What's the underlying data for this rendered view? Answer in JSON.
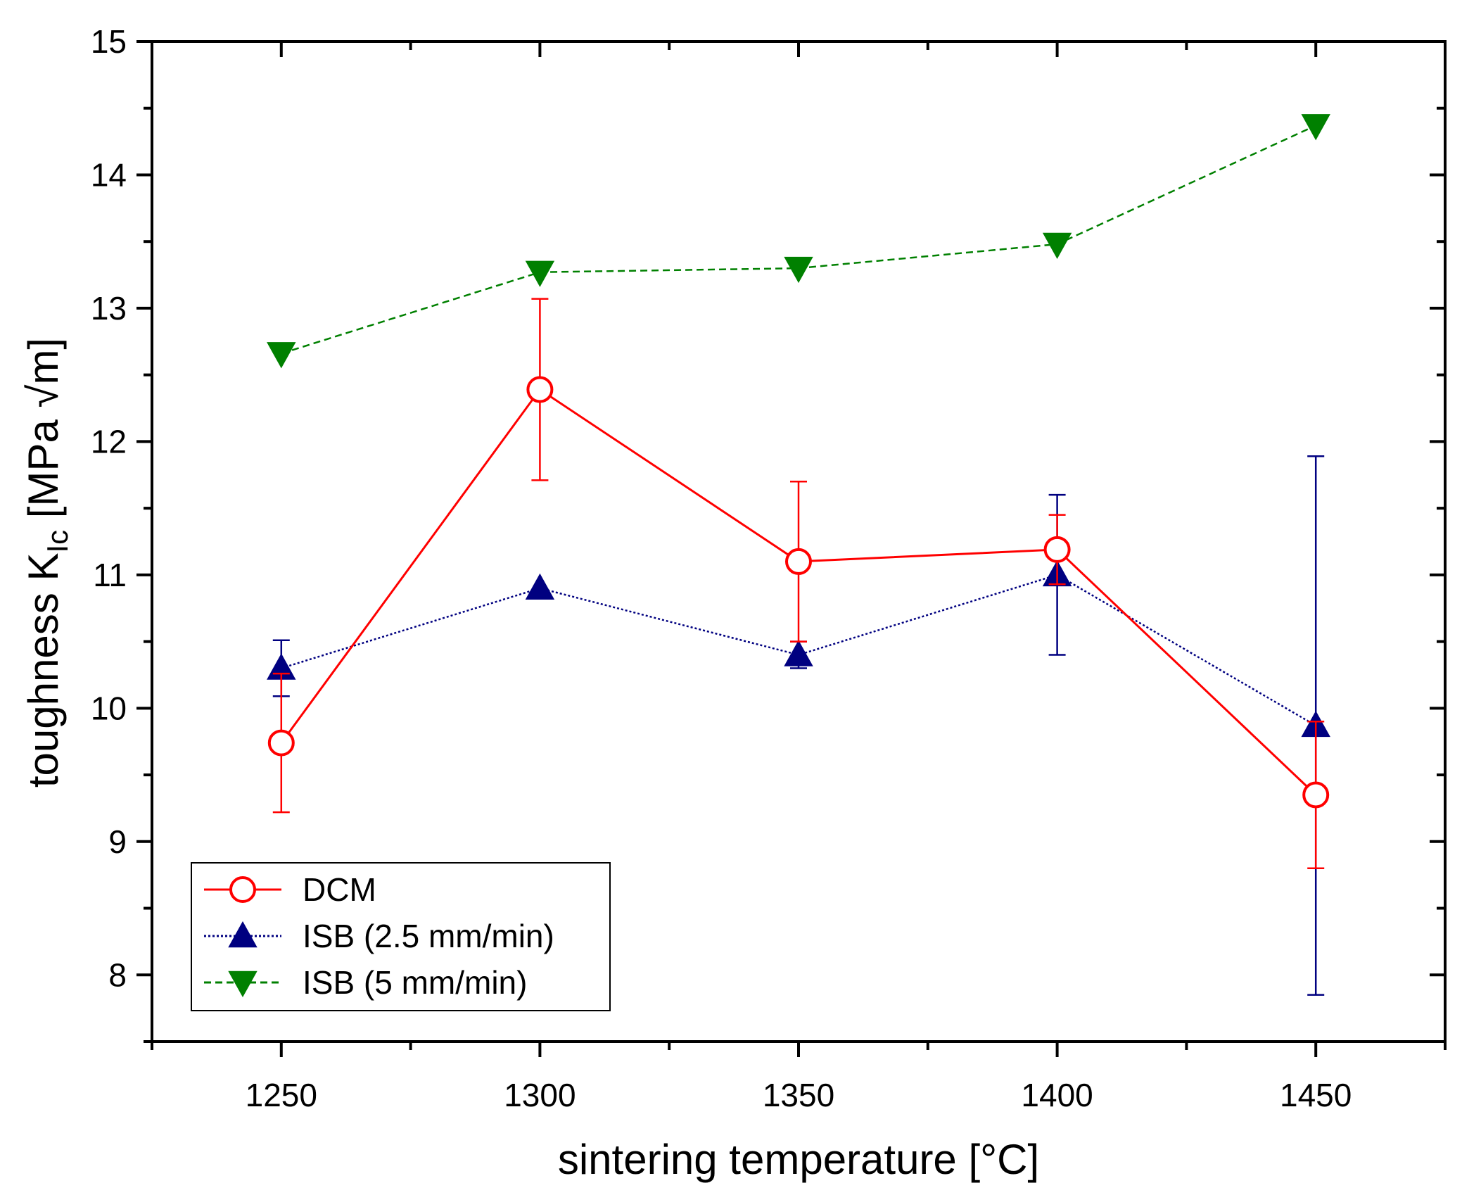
{
  "chart_data": {
    "type": "line",
    "title": "",
    "xlabel": "sintering temperature [°C]",
    "ylabel": {
      "prefix": "toughness K",
      "subscript": "Ic",
      "suffix": " [MPa √m]"
    },
    "xlim": [
      1225,
      1475
    ],
    "ylim": [
      7.5,
      15
    ],
    "x_ticks": [
      "1250",
      "1300",
      "1350",
      "1400",
      "1450"
    ],
    "y_ticks": [
      "8",
      "9",
      "10",
      "11",
      "12",
      "13",
      "14",
      "15"
    ],
    "legend_position": "bottom-left",
    "series": [
      {
        "name": "DCM",
        "label": "DCM",
        "color": "#ff0000",
        "line_style": "solid",
        "marker": "circle-open",
        "x": [
          1250,
          1300,
          1350,
          1400,
          1450
        ],
        "y": [
          9.74,
          12.39,
          11.1,
          11.19,
          9.35
        ],
        "error": [
          0.52,
          0.68,
          0.6,
          0.26,
          0.55
        ]
      },
      {
        "name": "ISB (2.5 mm/min)",
        "label": "ISB (2.5 mm/min)",
        "color": "#000080",
        "line_style": "dotted",
        "marker": "triangle-up-filled",
        "x": [
          1250,
          1300,
          1350,
          1400,
          1450
        ],
        "y": [
          10.3,
          10.9,
          10.4,
          11.0,
          9.87
        ],
        "error": [
          0.21,
          0.0,
          0.1,
          0.6,
          2.02
        ]
      },
      {
        "name": "ISB (5 mm/min)",
        "label": "ISB (5 mm/min)",
        "color": "#008000",
        "line_style": "dashed",
        "marker": "triangle-down-filled",
        "x": [
          1250,
          1300,
          1350,
          1400,
          1450
        ],
        "y": [
          12.66,
          13.27,
          13.3,
          13.48,
          14.37
        ],
        "error": [
          0,
          0,
          0,
          0,
          0
        ]
      }
    ]
  }
}
